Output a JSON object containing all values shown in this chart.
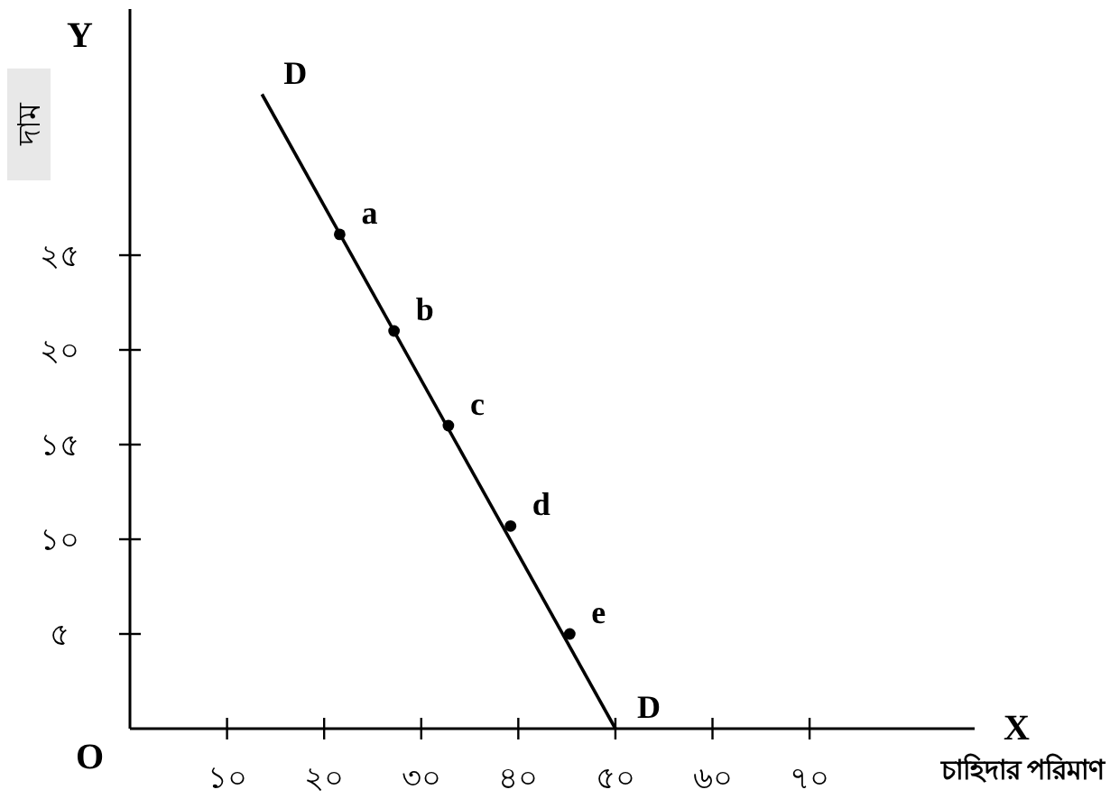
{
  "chart_data": {
    "type": "line",
    "xlabel": "চাহিদার পরিমাণ",
    "ylabel": "দাম",
    "xlim": [
      0,
      87
    ],
    "ylim": [
      0,
      38
    ],
    "xticks": [
      {
        "value": 10,
        "label": "১০"
      },
      {
        "value": 20,
        "label": "২০"
      },
      {
        "value": 30,
        "label": "৩০"
      },
      {
        "value": 40,
        "label": "৪০"
      },
      {
        "value": 50,
        "label": "৫০"
      },
      {
        "value": 60,
        "label": "৬০"
      },
      {
        "value": 70,
        "label": "৭০"
      }
    ],
    "yticks": [
      {
        "value": 5,
        "label": "৫"
      },
      {
        "value": 10,
        "label": "১০"
      },
      {
        "value": 15,
        "label": "১৫"
      },
      {
        "value": 20,
        "label": "২০"
      },
      {
        "value": 25,
        "label": "২৫"
      }
    ],
    "grid": false,
    "series": [
      {
        "type": "line",
        "color": "#000000",
        "marker": "none",
        "x": [
          13.6,
          50
        ],
        "values": [
          33.5,
          0
        ],
        "value_labels": [
          "D",
          "D"
        ]
      },
      {
        "type": "scatter",
        "color": "#000000",
        "marker": "circle",
        "x": [
          21.6,
          27.2,
          32.8,
          39.2,
          45.3
        ],
        "values": [
          26.1,
          21,
          16,
          10.7,
          5
        ],
        "value_labels": [
          "a",
          "b",
          "c",
          "d",
          "e"
        ]
      }
    ],
    "annotations": [
      "O",
      "X",
      "Y"
    ]
  }
}
